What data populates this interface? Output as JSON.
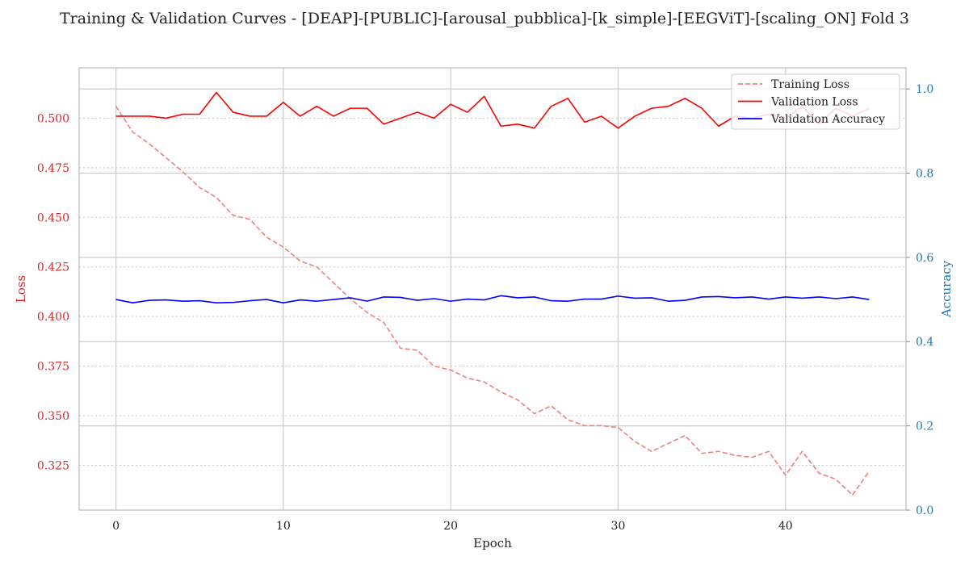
{
  "chart_data": {
    "type": "line",
    "title": "Training & Validation Curves - [DEAP]-[PUBLIC]-[arousal_pubblica]-[k_simple]-[EEGViT]-[scaling_ON] Fold 3",
    "xlabel": "Epoch",
    "ylabel_left": "Loss",
    "ylabel_right": "Accuracy",
    "xlim": [
      -2.2,
      47.2
    ],
    "ylim_left": [
      0.3024,
      0.5254
    ],
    "ylim_right": [
      0.0,
      1.05
    ],
    "x_ticks": [
      0,
      10,
      20,
      30,
      40
    ],
    "y_ticks_left": [
      0.325,
      0.35,
      0.375,
      0.4,
      0.425,
      0.45,
      0.475,
      0.5
    ],
    "y_ticks_right": [
      0.0,
      0.2,
      0.4,
      0.6,
      0.8,
      1.0
    ],
    "grid": true,
    "legend_position": "top-right",
    "x": [
      0,
      1,
      2,
      3,
      4,
      5,
      6,
      7,
      8,
      9,
      10,
      11,
      12,
      13,
      14,
      15,
      16,
      17,
      18,
      19,
      20,
      21,
      22,
      23,
      24,
      25,
      26,
      27,
      28,
      29,
      30,
      31,
      32,
      33,
      34,
      35,
      36,
      37,
      38,
      39,
      40,
      41,
      42,
      43,
      44,
      45
    ],
    "series": [
      {
        "name": "Training Loss",
        "axis": "left",
        "color": "#f08080",
        "dashed": true,
        "values": [
          0.506,
          0.493,
          0.487,
          0.48,
          0.473,
          0.465,
          0.46,
          0.451,
          0.449,
          0.44,
          0.435,
          0.428,
          0.425,
          0.417,
          0.409,
          0.402,
          0.397,
          0.384,
          0.383,
          0.375,
          0.373,
          0.369,
          0.367,
          0.362,
          0.358,
          0.351,
          0.355,
          0.348,
          0.345,
          0.345,
          0.344,
          0.337,
          0.332,
          0.336,
          0.34,
          0.331,
          0.332,
          0.33,
          0.329,
          0.332,
          0.32,
          0.332,
          0.321,
          0.318,
          0.31,
          0.322
        ]
      },
      {
        "name": "Validation Loss",
        "axis": "left",
        "color": "#ff0000",
        "dashed": false,
        "values": [
          0.501,
          0.501,
          0.501,
          0.5,
          0.502,
          0.502,
          0.513,
          0.503,
          0.501,
          0.501,
          0.508,
          0.501,
          0.506,
          0.501,
          0.505,
          0.505,
          0.497,
          0.5,
          0.503,
          0.5,
          0.507,
          0.503,
          0.511,
          0.496,
          0.497,
          0.495,
          0.506,
          0.51,
          0.498,
          0.501,
          0.495,
          0.501,
          0.505,
          0.506,
          0.51,
          0.505,
          0.496,
          0.501,
          0.5,
          0.502,
          0.5,
          0.506,
          0.497,
          0.505,
          0.501,
          0.505
        ]
      },
      {
        "name": "Validation Accuracy",
        "axis": "right",
        "color": "#0000ff",
        "dashed": false,
        "values": [
          0.5,
          0.492,
          0.498,
          0.499,
          0.496,
          0.497,
          0.492,
          0.493,
          0.497,
          0.5,
          0.492,
          0.499,
          0.496,
          0.5,
          0.504,
          0.496,
          0.506,
          0.505,
          0.498,
          0.502,
          0.496,
          0.501,
          0.499,
          0.509,
          0.504,
          0.506,
          0.497,
          0.496,
          0.501,
          0.501,
          0.508,
          0.503,
          0.504,
          0.496,
          0.498,
          0.506,
          0.507,
          0.504,
          0.506,
          0.501,
          0.506,
          0.503,
          0.506,
          0.502,
          0.506,
          0.5
        ]
      }
    ]
  },
  "colors": {
    "left_axis": "#d62728",
    "right_axis": "#1f77b4",
    "grid": "#cccccc",
    "frame": "#bbbbbb"
  }
}
